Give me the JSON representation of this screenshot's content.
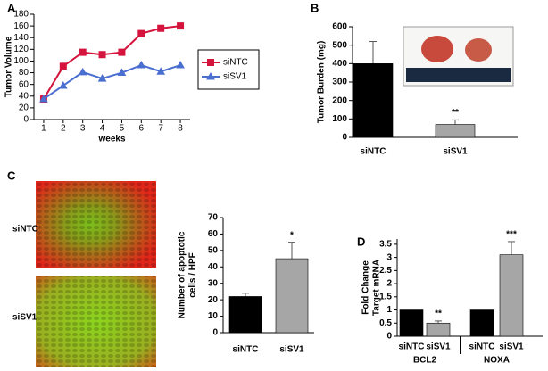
{
  "chart_data": [
    {
      "type": "line",
      "panel_label": "A",
      "ylabel": "Tumor Volume",
      "xlabel": "weeks",
      "x": [
        1,
        2,
        3,
        4,
        5,
        6,
        7,
        8
      ],
      "xlim": [
        0.5,
        8.5
      ],
      "xticks": [
        1,
        2,
        3,
        4,
        5,
        6,
        7,
        8
      ],
      "ylim": [
        0,
        180
      ],
      "yticks": [
        0,
        20,
        40,
        60,
        80,
        100,
        120,
        140,
        160,
        180
      ],
      "series": [
        {
          "name": "siNTC",
          "color": "#d4143c",
          "marker": "square",
          "values": [
            35,
            91,
            115,
            111,
            115,
            147,
            156,
            160
          ]
        },
        {
          "name": "siSV1",
          "color": "#4a6fd0",
          "marker": "triangle",
          "values": [
            35,
            58,
            81,
            70,
            80,
            93,
            82,
            93
          ]
        }
      ]
    },
    {
      "type": "bar",
      "panel_label": "B",
      "ylabel": "Tumor Burden (mg)",
      "categories": [
        "siNTC",
        "siSV1"
      ],
      "values": [
        400,
        70
      ],
      "errors": [
        120,
        25
      ],
      "colors": [
        "#000000",
        "#a6a6a6"
      ],
      "value_annotations": [
        null,
        "**"
      ],
      "ylim": [
        0,
        600
      ],
      "yticks": [
        0,
        100,
        200,
        300,
        400,
        500,
        600
      ]
    },
    {
      "type": "bar",
      "panel_label": "C",
      "image_labels": [
        "siNTC",
        "siSV1"
      ],
      "ylabel": [
        "Number of apoptotic",
        "cells / HPF"
      ],
      "categories": [
        "siNTC",
        "siSV1"
      ],
      "values": [
        22,
        45
      ],
      "errors": [
        2,
        10
      ],
      "colors": [
        "#000000",
        "#a6a6a6"
      ],
      "value_annotations": [
        null,
        "*"
      ],
      "ylim": [
        0,
        70
      ],
      "yticks": [
        0,
        10,
        20,
        30,
        40,
        50,
        60,
        70
      ]
    },
    {
      "type": "bar",
      "panel_label": "D",
      "ylabel": [
        "Fold Change",
        "Target  mRNA"
      ],
      "categories": [
        "siNTC",
        "siSV1",
        "siNTC",
        "siSV1"
      ],
      "groups": [
        "BCL2",
        "NOXA"
      ],
      "values": [
        1,
        0.5,
        1,
        3.1
      ],
      "errors": [
        null,
        0.08,
        null,
        0.5
      ],
      "colors": [
        "#000000",
        "#a6a6a6",
        "#000000",
        "#a6a6a6"
      ],
      "value_annotations": [
        null,
        "**",
        null,
        "***"
      ],
      "ylim": [
        0,
        3.7
      ],
      "yticks": [
        0,
        0.5,
        1,
        1.5,
        2,
        2.5,
        3,
        3.5
      ]
    }
  ]
}
